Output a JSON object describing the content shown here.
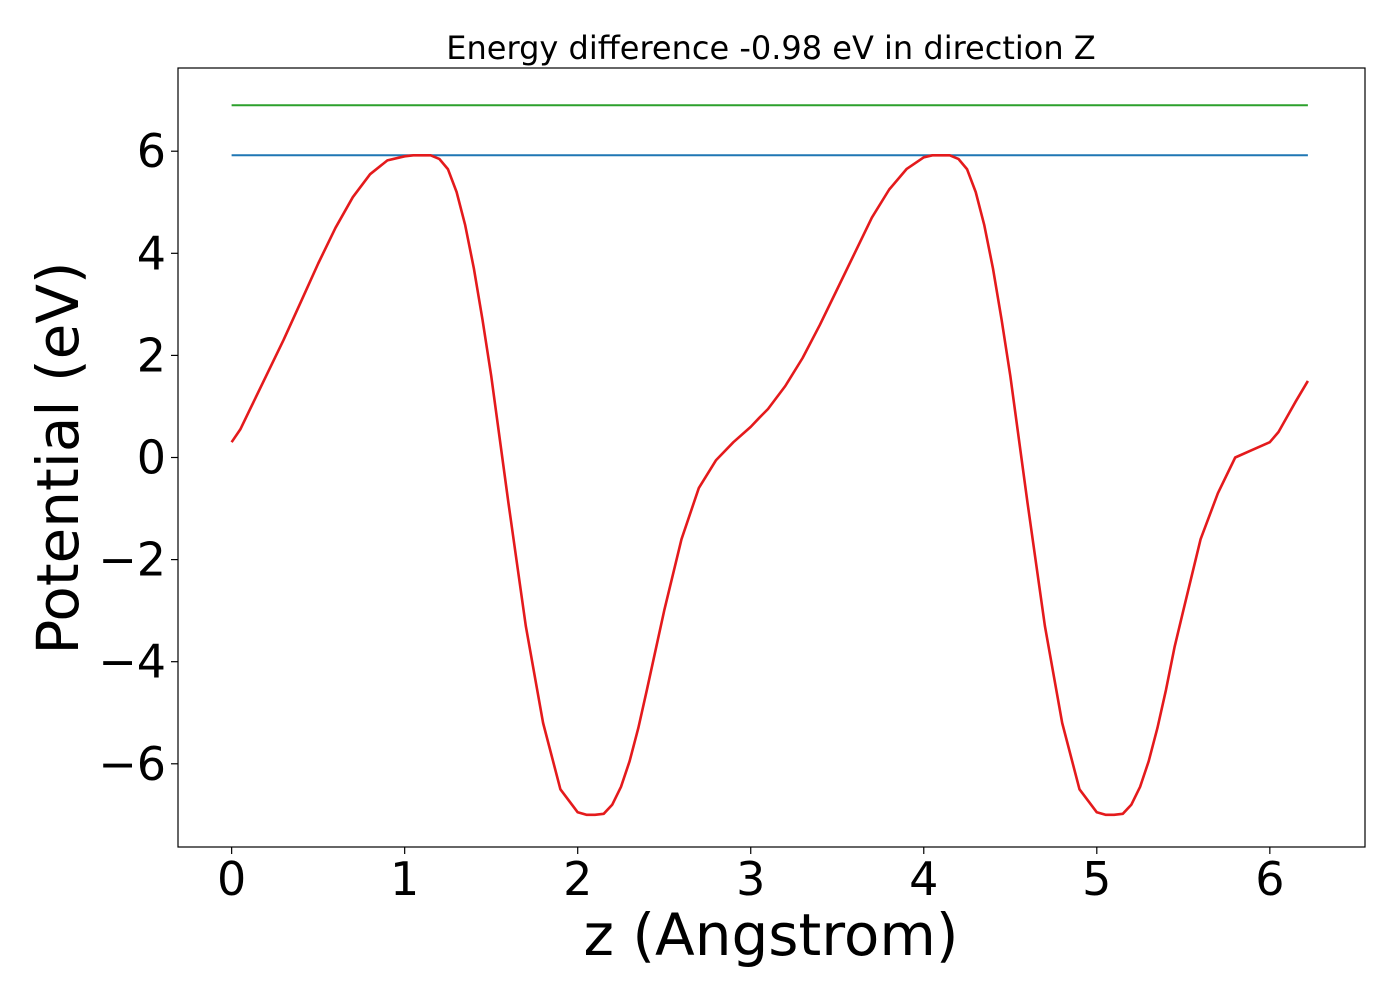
{
  "chart_data": {
    "type": "line",
    "title": "Energy difference -0.98 eV in direction Z",
    "xlabel": "z (Angstrom)",
    "ylabel": "Potential (eV)",
    "xlim": [
      -0.31,
      6.55
    ],
    "ylim": [
      -7.63,
      7.63
    ],
    "grid": false,
    "legend": "none",
    "x_ticks": [
      {
        "value": 0,
        "label": "0"
      },
      {
        "value": 1,
        "label": "1"
      },
      {
        "value": 2,
        "label": "2"
      },
      {
        "value": 3,
        "label": "3"
      },
      {
        "value": 4,
        "label": "4"
      },
      {
        "value": 5,
        "label": "5"
      },
      {
        "value": 6,
        "label": "6"
      }
    ],
    "y_ticks": [
      {
        "value": 6,
        "label": "6"
      },
      {
        "value": 4,
        "label": "4"
      },
      {
        "value": 2,
        "label": "2"
      },
      {
        "value": 0,
        "label": "0"
      },
      {
        "value": -2,
        "label": "−2"
      },
      {
        "value": -4,
        "label": "−4"
      },
      {
        "value": -6,
        "label": "−6"
      }
    ],
    "series": [
      {
        "color": "#2ca02c",
        "x": [
          0,
          6.22
        ],
        "y": [
          6.9,
          6.9
        ]
      },
      {
        "color": "#1f77b4",
        "x": [
          0,
          6.22
        ],
        "y": [
          5.92,
          5.92
        ]
      },
      {
        "color": "#e41a1c",
        "x": [
          0.0,
          0.05,
          0.1,
          0.2,
          0.3,
          0.4,
          0.5,
          0.6,
          0.7,
          0.8,
          0.9,
          1.0,
          1.05,
          1.1,
          1.15,
          1.2,
          1.25,
          1.3,
          1.35,
          1.4,
          1.45,
          1.5,
          1.6,
          1.7,
          1.8,
          1.9,
          2.0,
          2.05,
          2.1,
          2.15,
          2.2,
          2.25,
          2.3,
          2.35,
          2.4,
          2.5,
          2.6,
          2.7,
          2.8,
          2.9,
          3.0,
          3.05,
          3.1,
          3.2,
          3.3,
          3.4,
          3.5,
          3.6,
          3.7,
          3.8,
          3.9,
          4.0,
          4.05,
          4.1,
          4.15,
          4.2,
          4.25,
          4.3,
          4.35,
          4.4,
          4.45,
          4.5,
          4.6,
          4.7,
          4.8,
          4.9,
          5.0,
          5.05,
          5.1,
          5.15,
          5.2,
          5.25,
          5.3,
          5.35,
          5.4,
          5.45,
          5.5,
          5.6,
          5.7,
          5.8,
          5.9,
          6.0,
          6.05,
          6.1,
          6.15,
          6.22
        ],
        "y": [
          0.3,
          0.55,
          0.9,
          1.6,
          2.3,
          3.05,
          3.8,
          4.5,
          5.1,
          5.55,
          5.82,
          5.9,
          5.92,
          5.92,
          5.92,
          5.85,
          5.65,
          5.2,
          4.55,
          3.7,
          2.7,
          1.6,
          -0.9,
          -3.3,
          -5.2,
          -6.5,
          -6.95,
          -7.0,
          -7.0,
          -6.98,
          -6.8,
          -6.45,
          -5.95,
          -5.3,
          -4.55,
          -3.0,
          -1.6,
          -0.6,
          -0.05,
          0.3,
          0.6,
          0.78,
          0.95,
          1.4,
          1.95,
          2.6,
          3.3,
          4.0,
          4.7,
          5.25,
          5.65,
          5.88,
          5.92,
          5.92,
          5.92,
          5.85,
          5.65,
          5.2,
          4.55,
          3.7,
          2.7,
          1.6,
          -0.9,
          -3.3,
          -5.2,
          -6.5,
          -6.95,
          -7.0,
          -7.0,
          -6.98,
          -6.8,
          -6.45,
          -5.95,
          -5.3,
          -4.55,
          -3.7,
          -3.0,
          -1.6,
          -0.7,
          0.0,
          0.15,
          0.3,
          0.5,
          0.8,
          1.1,
          1.5
        ]
      }
    ]
  }
}
